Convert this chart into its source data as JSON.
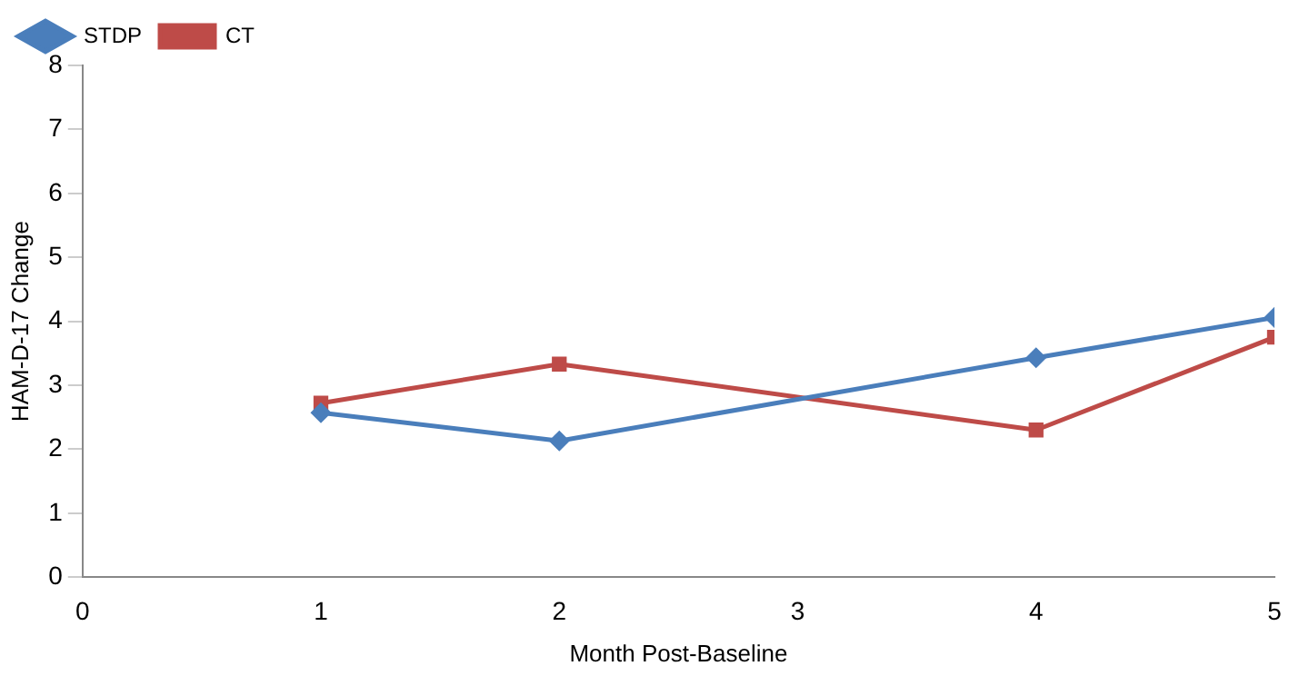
{
  "chart_data": {
    "type": "line",
    "xlabel": "Month Post-Baseline",
    "ylabel": "HAM-D-17 Change",
    "x": [
      1,
      2,
      4,
      5
    ],
    "series": [
      {
        "name": "STDP",
        "color": "#4a7ebb",
        "marker": "diamond",
        "values": [
          2.57,
          2.13,
          3.43,
          4.06
        ]
      },
      {
        "name": "CT",
        "color": "#be4b48",
        "marker": "square",
        "values": [
          2.72,
          3.33,
          2.3,
          3.75
        ]
      }
    ],
    "xlim": [
      0,
      5
    ],
    "xticks": [
      0,
      1,
      2,
      3,
      4,
      5
    ],
    "ylim": [
      0,
      8
    ],
    "yticks": [
      0,
      1,
      2,
      3,
      4,
      5,
      6,
      7,
      8
    ],
    "grid": false,
    "legend": "top left"
  }
}
